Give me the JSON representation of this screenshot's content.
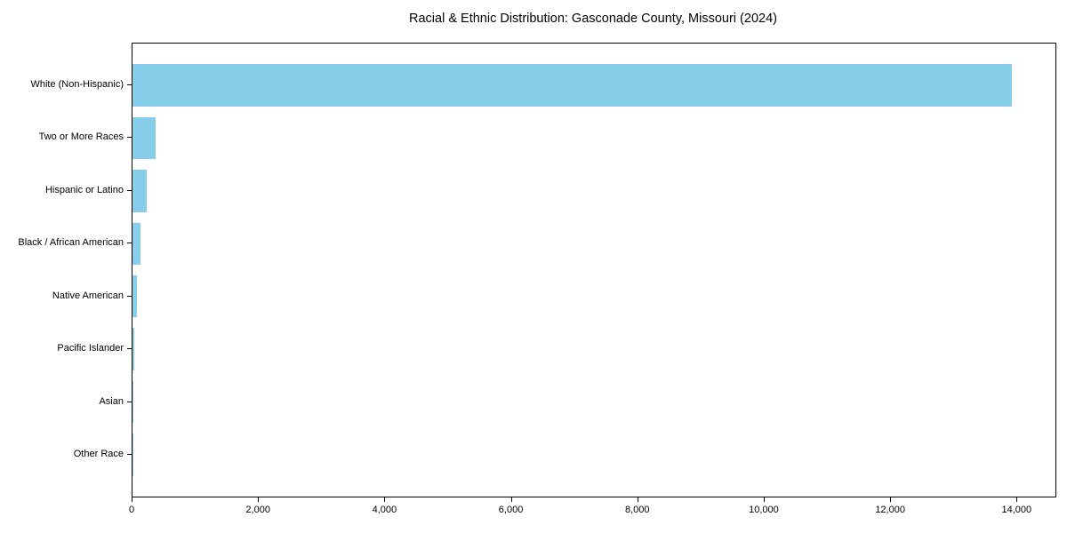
{
  "chart_data": {
    "type": "bar",
    "orientation": "horizontal",
    "title": "Racial & Ethnic Distribution: Gasconade County, Missouri (2024)",
    "categories": [
      "White (Non-Hispanic)",
      "Two or More Races",
      "Hispanic or Latino",
      "Black / African American",
      "Native American",
      "Pacific Islander",
      "Asian",
      "Other Race"
    ],
    "values": [
      13910,
      370,
      230,
      125,
      65,
      35,
      15,
      3
    ],
    "xlabel": "",
    "ylabel": "",
    "xlim": [
      0,
      14600
    ],
    "x_ticks": [
      0,
      2000,
      4000,
      6000,
      8000,
      10000,
      12000,
      14000
    ],
    "x_tick_labels": [
      "0",
      "2,000",
      "4,000",
      "6,000",
      "8,000",
      "10,000",
      "12,000",
      "14,000"
    ],
    "bar_color": "#87CEEB",
    "spine_color": "#000000",
    "text_color": "#000000",
    "grid": false,
    "legend": "none"
  }
}
